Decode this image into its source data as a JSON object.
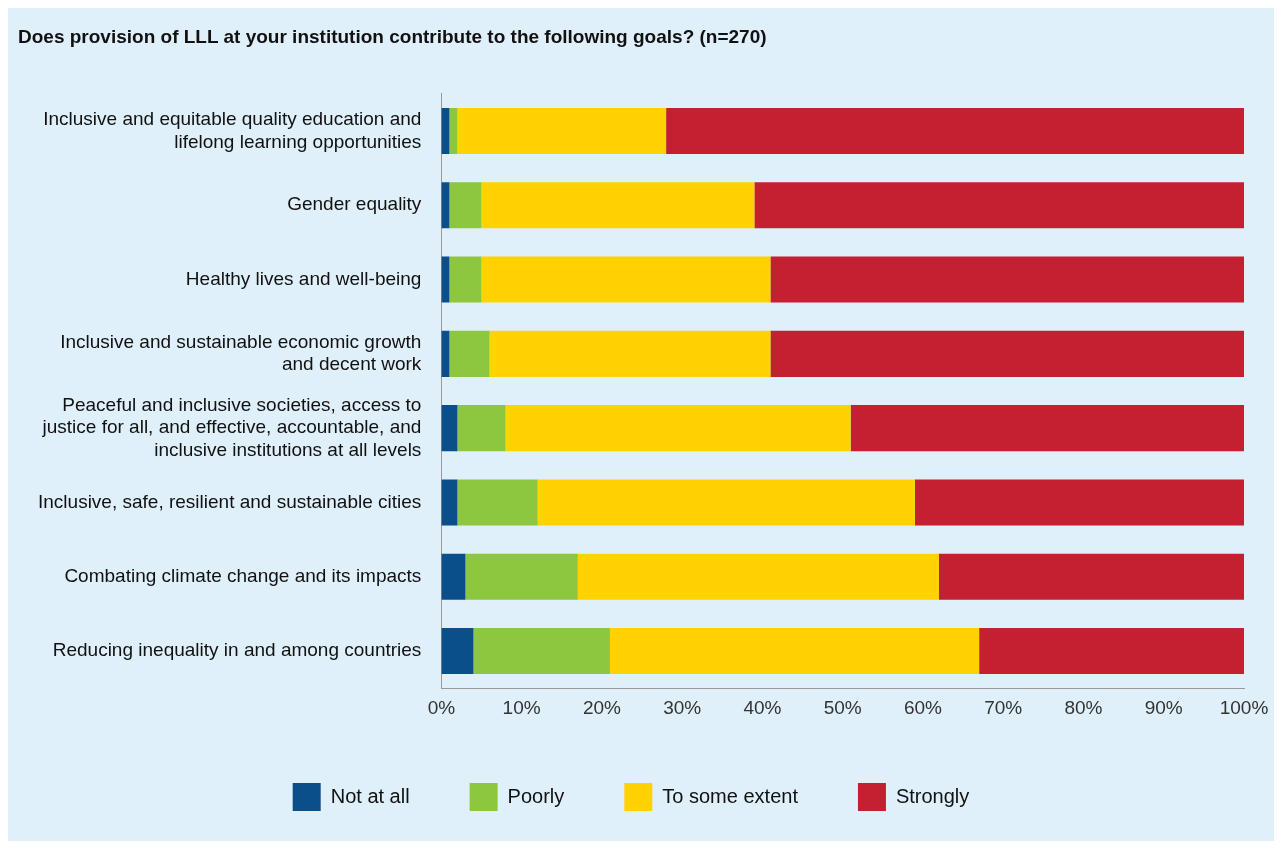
{
  "chart_data": {
    "type": "bar",
    "orientation": "horizontal",
    "stacked": true,
    "title": "Does provision of LLL at your institution contribute to the following goals? (n=270)",
    "categories": [
      "Inclusive and equitable quality education and lifelong learning opportunities",
      "Gender equality",
      "Healthy lives and well-being",
      "Inclusive and sustainable economic growth and decent work",
      "Peaceful and inclusive societies, access to justice for all, and effective, accountable, and inclusive institutions at all levels",
      "Inclusive, safe, resilient and sustainable cities",
      "Combating climate change and its impacts",
      "Reducing inequality in and among countries"
    ],
    "series": [
      {
        "name": "Not at all",
        "color": "#0b4f8a",
        "values": [
          1,
          1,
          1,
          1,
          2,
          2,
          3,
          4
        ]
      },
      {
        "name": "Poorly",
        "color": "#8dc63f",
        "values": [
          1,
          4,
          4,
          5,
          6,
          10,
          14,
          17
        ]
      },
      {
        "name": "To some extent",
        "color": "#ffd200",
        "values": [
          26,
          34,
          36,
          35,
          43,
          47,
          45,
          46
        ]
      },
      {
        "name": "Strongly",
        "color": "#c42032",
        "values": [
          72,
          61,
          59,
          59,
          49,
          41,
          38,
          33
        ]
      }
    ],
    "xlim": [
      0,
      100
    ],
    "xticks": [
      {
        "value": 0,
        "label": "0%"
      },
      {
        "value": 10,
        "label": "10%"
      },
      {
        "value": 20,
        "label": "20%"
      },
      {
        "value": 30,
        "label": "30%"
      },
      {
        "value": 40,
        "label": "40%"
      },
      {
        "value": 50,
        "label": "50%"
      },
      {
        "value": 60,
        "label": "60%"
      },
      {
        "value": 70,
        "label": "70%"
      },
      {
        "value": 80,
        "label": "80%"
      },
      {
        "value": 90,
        "label": "90%"
      },
      {
        "value": 100,
        "label": "100%"
      }
    ],
    "grid": false,
    "legend": "bottom"
  }
}
